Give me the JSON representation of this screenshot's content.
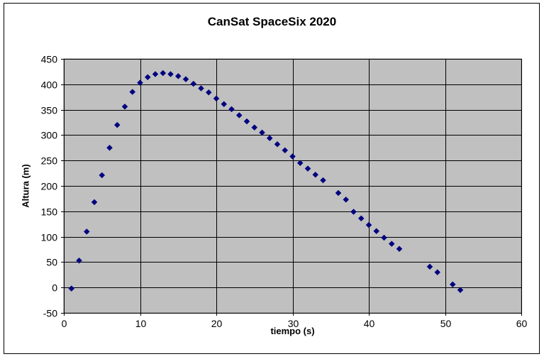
{
  "chart_data": {
    "type": "scatter",
    "title": "CanSat SpaceSix 2020",
    "xlabel": "tiempo (s)",
    "ylabel": "Altura (m)",
    "xlim": [
      0,
      60
    ],
    "ylim": [
      -50,
      450
    ],
    "xticks": [
      0,
      10,
      20,
      30,
      40,
      50,
      60
    ],
    "yticks": [
      -50,
      0,
      50,
      100,
      150,
      200,
      250,
      300,
      350,
      400,
      450
    ],
    "grid": "major gridlines on",
    "legend": "none",
    "plot_background": "#c0c0c0",
    "marker_color": "#000080",
    "marker": "diamond",
    "series": [
      {
        "x": [
          1,
          2,
          3,
          4,
          5,
          6,
          7,
          8,
          9,
          10,
          11,
          12,
          13,
          14,
          15,
          16,
          17,
          18,
          19,
          20,
          21,
          22,
          23,
          24,
          25,
          26,
          27,
          28,
          29,
          30,
          31,
          32,
          33,
          34,
          36,
          37,
          38,
          39,
          40,
          41,
          42,
          43,
          44,
          48,
          49,
          51,
          52
        ],
        "y": [
          -2,
          53,
          110,
          168,
          221,
          275,
          320,
          356,
          385,
          403,
          414,
          420,
          422,
          420,
          416,
          410,
          401,
          392,
          384,
          372,
          361,
          351,
          339,
          327,
          315,
          305,
          294,
          282,
          270,
          258,
          245,
          234,
          222,
          211,
          186,
          173,
          149,
          136,
          123,
          111,
          98,
          86,
          76,
          41,
          30,
          6,
          -5
        ]
      }
    ]
  }
}
